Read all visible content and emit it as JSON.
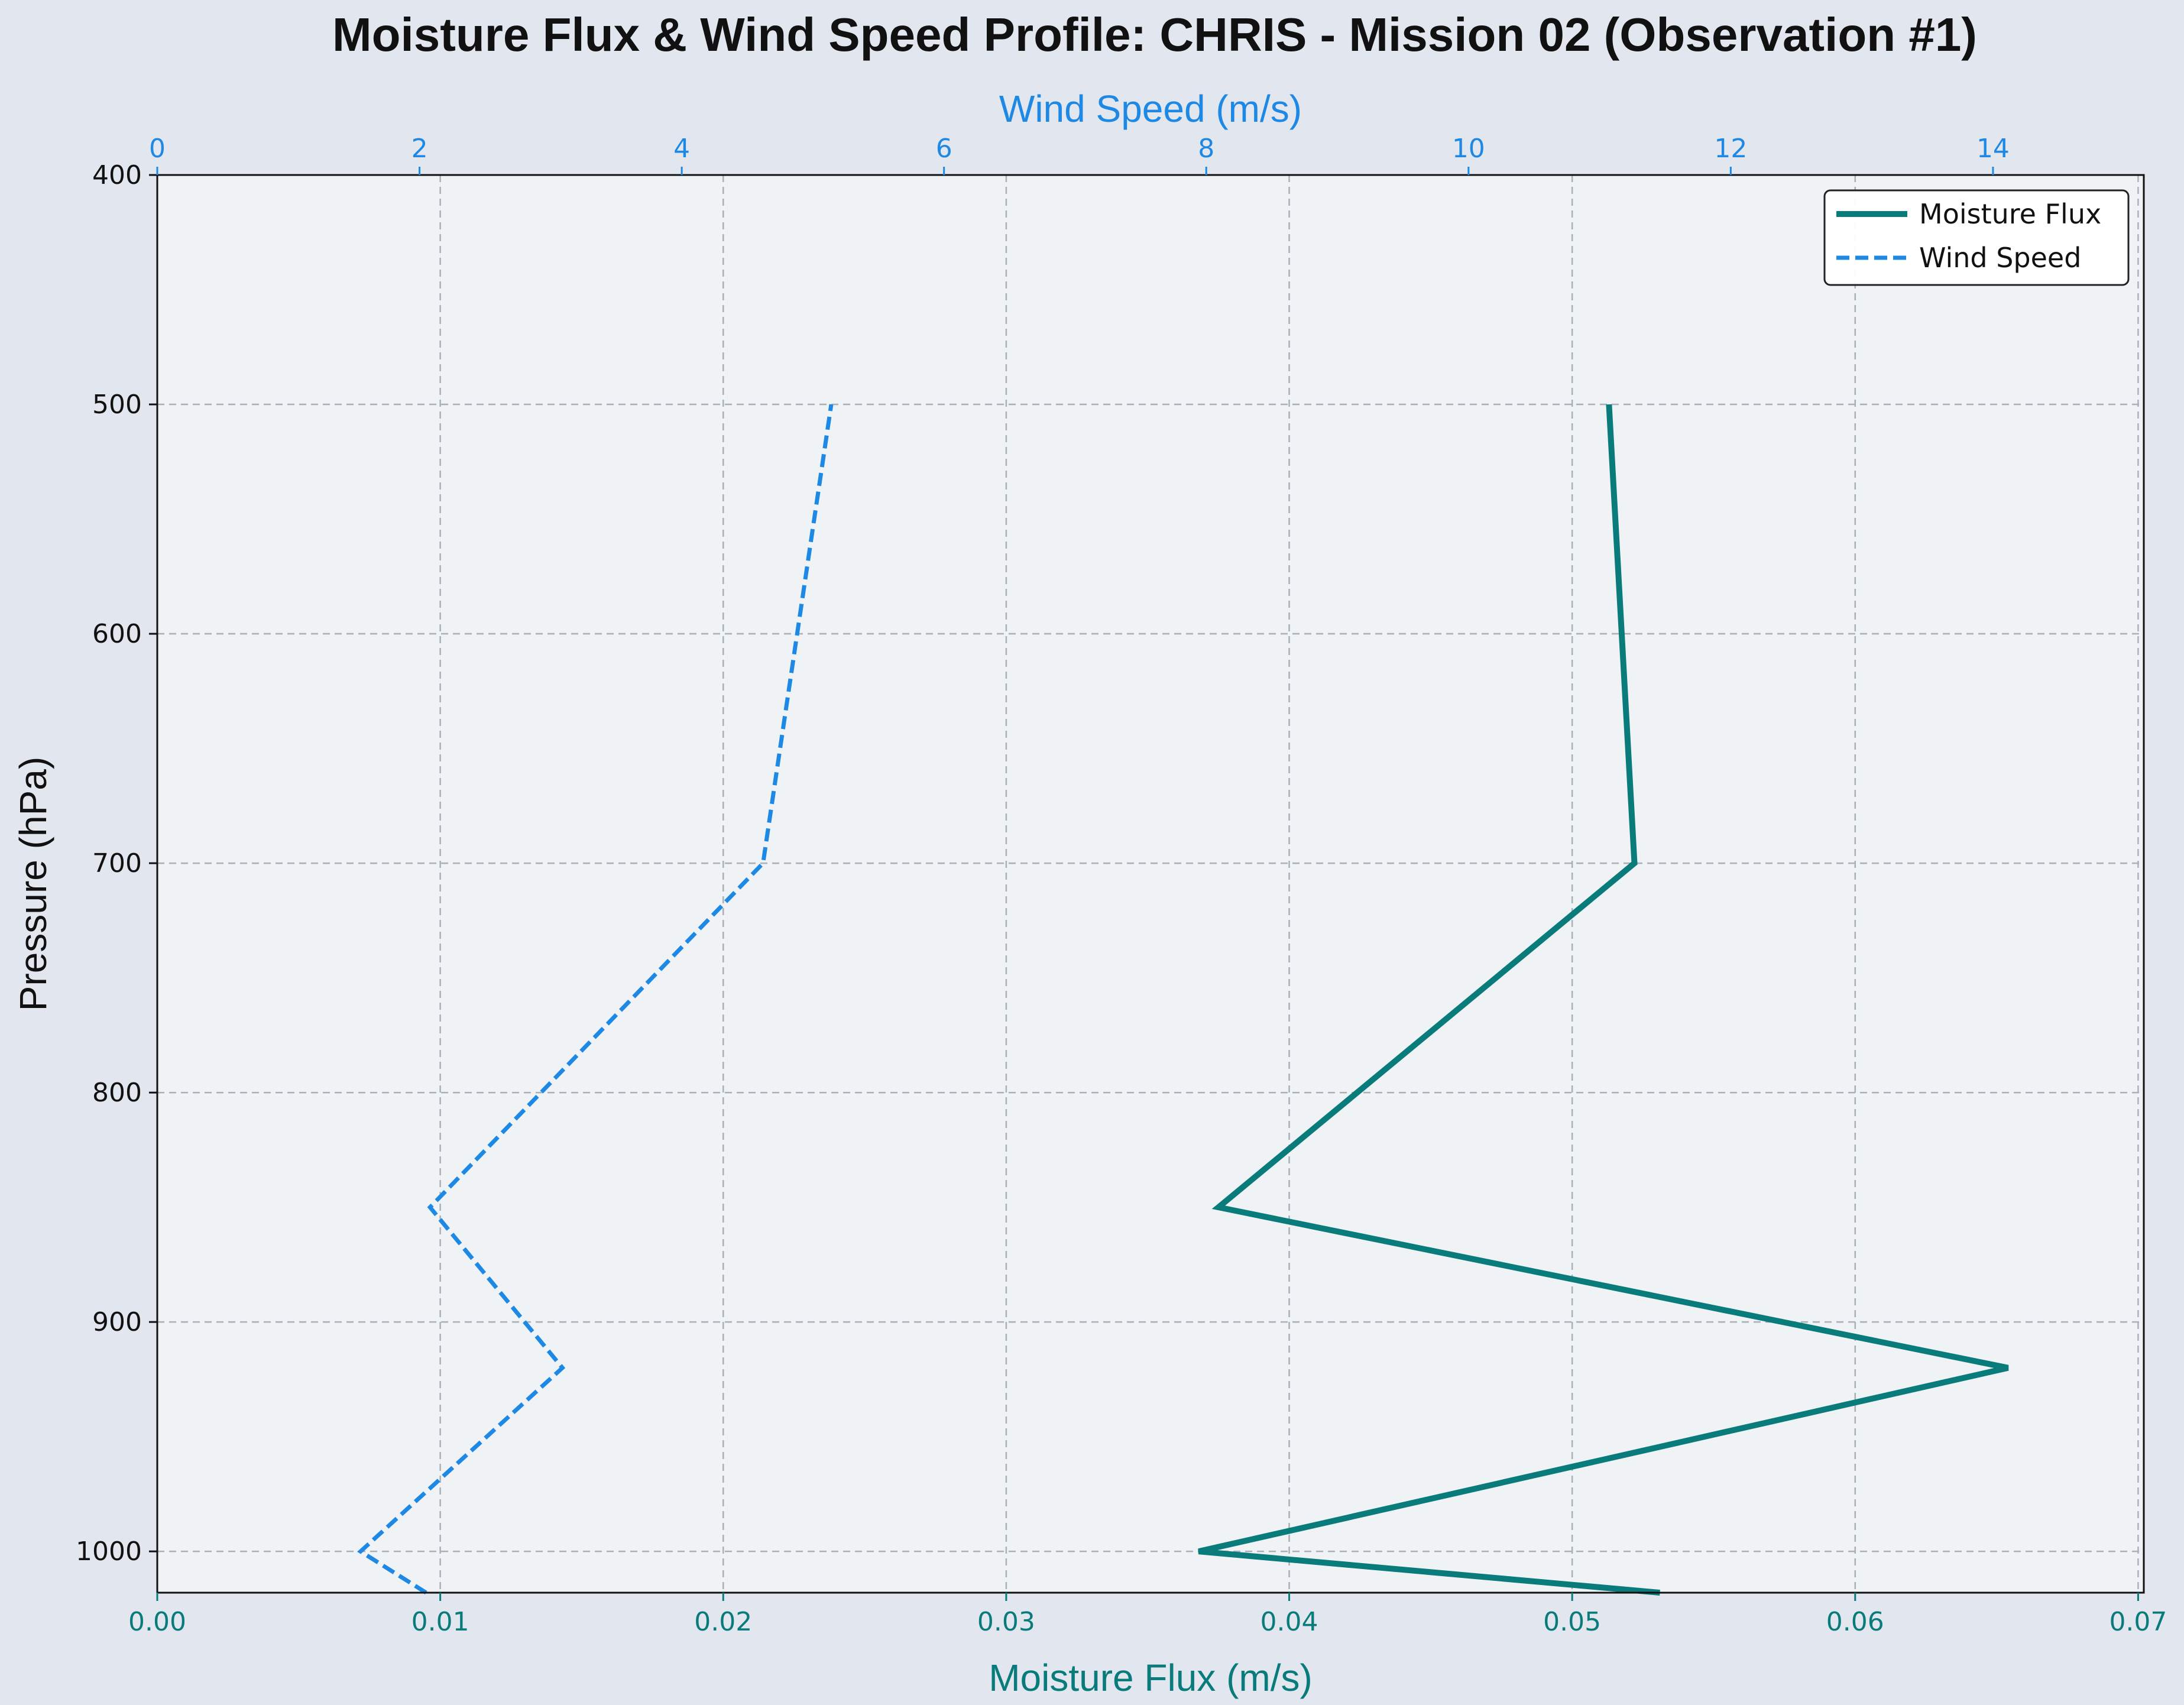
{
  "title": "Moisture Flux & Wind Speed Profile: CHRIS - Mission 02 (Observation #1)",
  "colors": {
    "figure_background": "#e2e6ee",
    "plot_background": "#eff3f6",
    "moisture_flux": "#0a7b7b",
    "wind_speed": "#1e88e5",
    "grid": "#a9b0b6"
  },
  "legend": {
    "placement": "top-right",
    "items": [
      {
        "label": "Moisture Flux",
        "style": "solid"
      },
      {
        "label": "Wind Speed",
        "style": "dashed"
      }
    ]
  },
  "chart_data": {
    "type": "line",
    "title": "Moisture Flux & Wind Speed Profile: CHRIS - Mission 02 (Observation #1)",
    "y_axis": {
      "label": "Pressure (hPa)",
      "range": [
        1018,
        400
      ],
      "inverted": true,
      "ticks": [
        "400",
        "500",
        "600",
        "700",
        "800",
        "900",
        "1000"
      ],
      "tick_values": [
        400,
        500,
        600,
        700,
        800,
        900,
        1000
      ]
    },
    "x_axis_bottom": {
      "label": "Moisture Flux (m/s)",
      "range": [
        0,
        0.0702
      ],
      "ticks": [
        "0.00",
        "0.01",
        "0.02",
        "0.03",
        "0.04",
        "0.05",
        "0.06",
        "0.07"
      ],
      "tick_values": [
        0,
        0.01,
        0.02,
        0.03,
        0.04,
        0.05,
        0.06,
        0.07
      ]
    },
    "x_axis_top": {
      "label": "Wind Speed (m/s)",
      "range": [
        0,
        15.15
      ],
      "ticks": [
        "0",
        "2",
        "4",
        "6",
        "8",
        "10",
        "12",
        "14"
      ],
      "tick_values": [
        0,
        2,
        4,
        6,
        8,
        10,
        12,
        14
      ]
    },
    "grid": true,
    "series": [
      {
        "name": "Moisture Flux",
        "axis": "bottom",
        "line": "solid",
        "points": [
          {
            "pressure": 1018,
            "value": 0.0531
          },
          {
            "pressure": 1000,
            "value": 0.0368
          },
          {
            "pressure": 920,
            "value": 0.0654
          },
          {
            "pressure": 850,
            "value": 0.0375
          },
          {
            "pressure": 700,
            "value": 0.0522
          },
          {
            "pressure": 500,
            "value": 0.0513
          }
        ]
      },
      {
        "name": "Wind Speed",
        "axis": "top",
        "line": "dashed",
        "points": [
          {
            "pressure": 1018,
            "value": 2.05
          },
          {
            "pressure": 1000,
            "value": 1.55
          },
          {
            "pressure": 920,
            "value": 3.09
          },
          {
            "pressure": 850,
            "value": 2.08
          },
          {
            "pressure": 700,
            "value": 4.62
          },
          {
            "pressure": 500,
            "value": 5.14
          }
        ]
      }
    ]
  }
}
